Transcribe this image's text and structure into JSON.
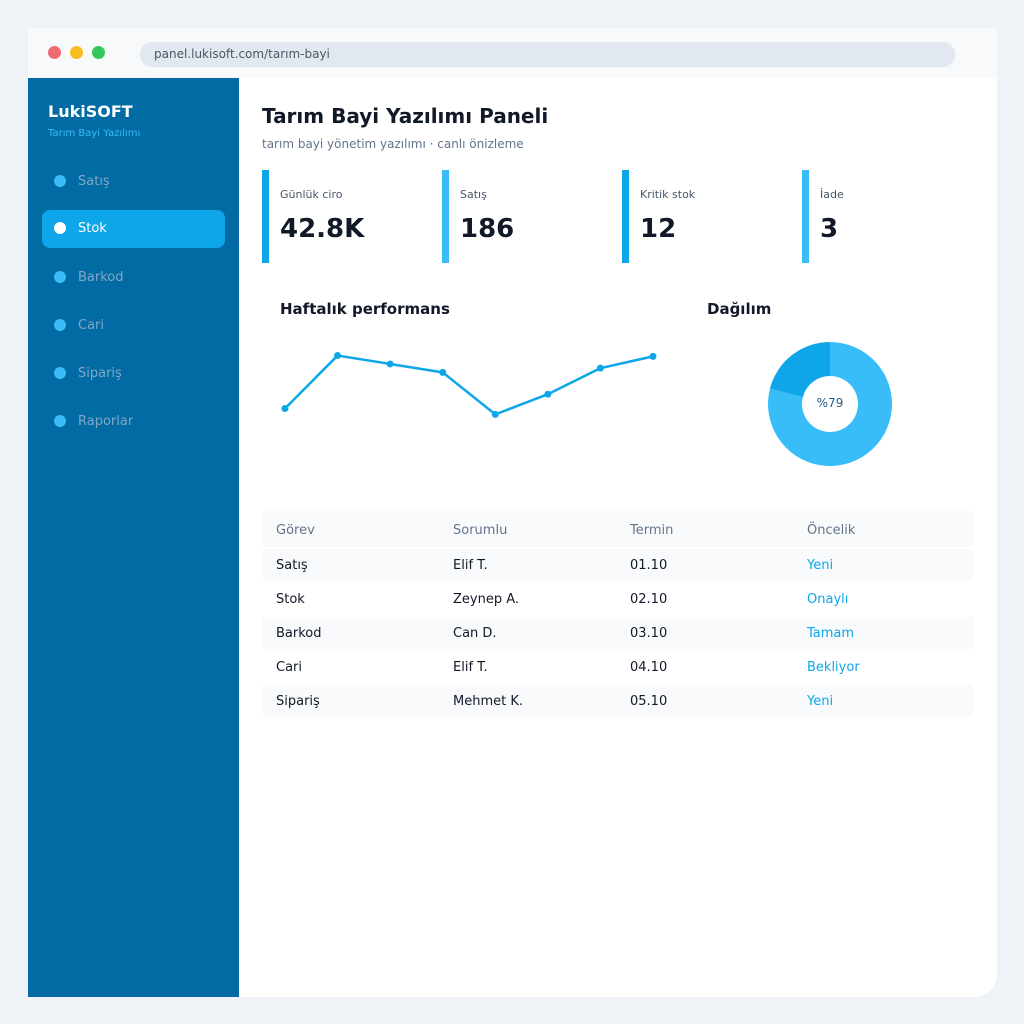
{
  "browser": {
    "url": "panel.lukisoft.com/tarım-bayi"
  },
  "sidebar": {
    "brand": "LukiSOFT",
    "brand_sub": "Tarım Bayi Yazılımı",
    "items": [
      {
        "label": "Satış",
        "active": false
      },
      {
        "label": "Stok",
        "active": true
      },
      {
        "label": "Barkod",
        "active": false
      },
      {
        "label": "Cari",
        "active": false
      },
      {
        "label": "Sipariş",
        "active": false
      },
      {
        "label": "Raporlar",
        "active": false
      }
    ]
  },
  "header": {
    "title": "Tarım Bayi Yazılımı Paneli",
    "subtitle": "tarım bayi yönetim yazılımı · canlı önizleme"
  },
  "kpis": [
    {
      "label": "Günlük ciro",
      "value": "42.8K"
    },
    {
      "label": "Satış",
      "value": "186"
    },
    {
      "label": "Kritik stok",
      "value": "12"
    },
    {
      "label": "İade",
      "value": "3"
    }
  ],
  "charts": {
    "performance_title": "Haftalık performans",
    "distribution_title": "Dağılım",
    "donut_label": "%79"
  },
  "chart_data": [
    {
      "type": "line",
      "title": "Haftalık performans",
      "x": [
        1,
        2,
        3,
        4,
        5,
        6,
        7,
        8
      ],
      "values": [
        28,
        91,
        81,
        71,
        21,
        45,
        76,
        90
      ],
      "ylim": [
        0,
        100
      ]
    },
    {
      "type": "pie",
      "title": "Dağılım",
      "values": [
        79,
        21
      ],
      "center_label": "%79"
    }
  ],
  "table": {
    "headers": [
      "Görev",
      "Sorumlu",
      "Termin",
      "Öncelik"
    ],
    "rows": [
      [
        "Satış",
        "Elif T.",
        "01.10",
        "Yeni"
      ],
      [
        "Stok",
        "Zeynep A.",
        "02.10",
        "Onaylı"
      ],
      [
        "Barkod",
        "Can D.",
        "03.10",
        "Tamam"
      ],
      [
        "Cari",
        "Elif T.",
        "04.10",
        "Bekliyor"
      ],
      [
        "Sipariş",
        "Mehmet K.",
        "05.10",
        "Yeni"
      ]
    ]
  },
  "colors": {
    "sidebar_bg": "#026ba3",
    "accent": "#0ea5e9",
    "accent_light": "#38bdf8",
    "donut_major": "#38bdf8",
    "donut_minor": "#0ea5e9"
  }
}
